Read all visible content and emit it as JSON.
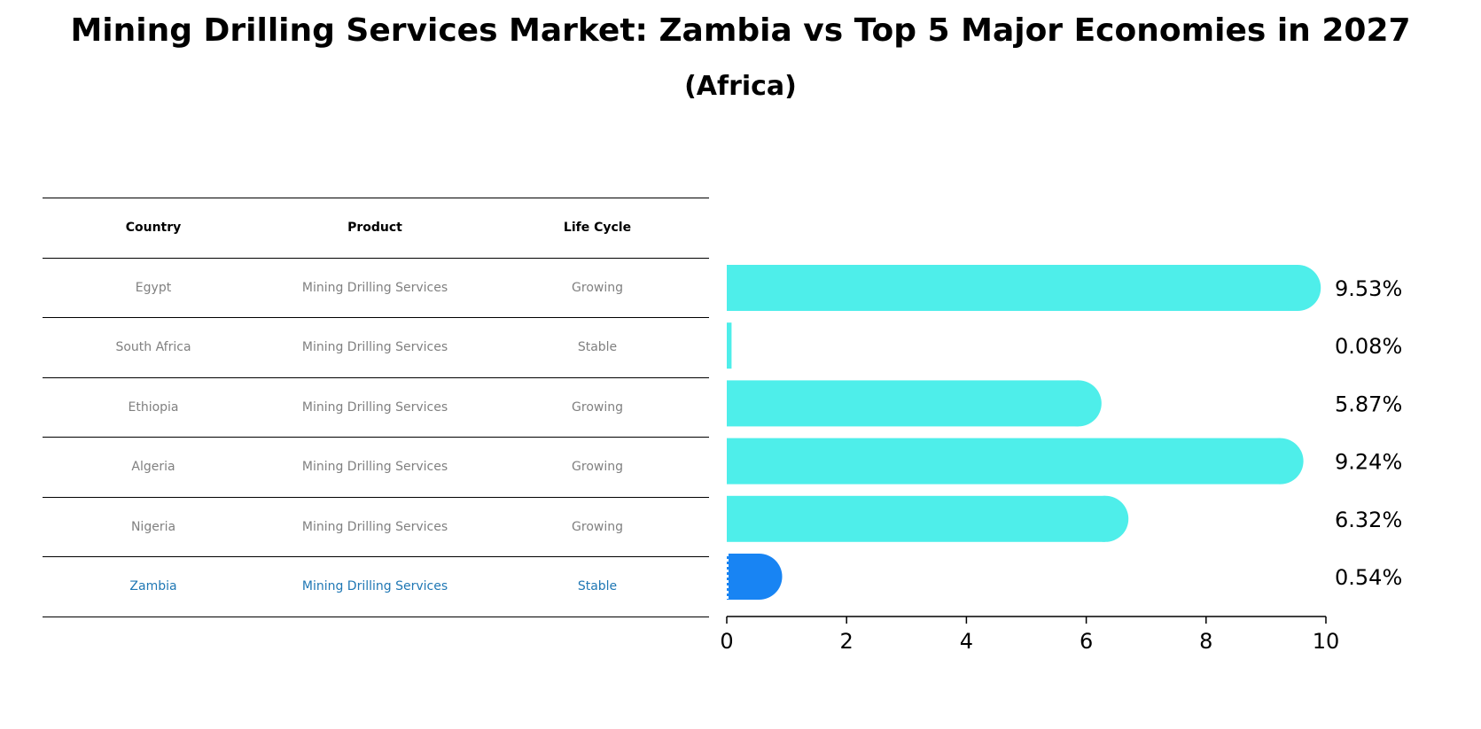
{
  "title": "Mining Drilling Services Market: Zambia vs Top 5 Major Economies in 2027",
  "subtitle": "(Africa)",
  "table": {
    "headers": [
      "Country",
      "Product",
      "Life Cycle"
    ],
    "rows": [
      {
        "country": "Egypt",
        "product": "Mining Drilling Services",
        "life_cycle": "Growing"
      },
      {
        "country": "South Africa",
        "product": "Mining Drilling Services",
        "life_cycle": "Stable"
      },
      {
        "country": "Ethiopia",
        "product": "Mining Drilling Services",
        "life_cycle": "Growing"
      },
      {
        "country": "Algeria",
        "product": "Mining Drilling Services",
        "life_cycle": "Growing"
      },
      {
        "country": "Nigeria",
        "product": "Mining Drilling Services",
        "life_cycle": "Growing"
      },
      {
        "country": "Zambia",
        "product": "Mining Drilling Services",
        "life_cycle": "Stable"
      }
    ]
  },
  "colors": {
    "bar": "#4eeeea",
    "highlight_bar": "#1884f3",
    "highlight_text": "#1f77b4",
    "muted_text": "#808080"
  },
  "chart_data": {
    "type": "bar",
    "orientation": "horizontal",
    "categories": [
      "Egypt",
      "South Africa",
      "Ethiopia",
      "Algeria",
      "Nigeria",
      "Zambia"
    ],
    "values": [
      9.53,
      0.08,
      5.87,
      9.24,
      6.32,
      0.54
    ],
    "value_labels": [
      "9.53%",
      "0.08%",
      "5.87%",
      "9.24%",
      "6.32%",
      "0.54%"
    ],
    "highlight": "Zambia",
    "xlim": [
      0,
      10
    ],
    "xticks": [
      0,
      2,
      4,
      6,
      8,
      10
    ],
    "grid": false
  }
}
